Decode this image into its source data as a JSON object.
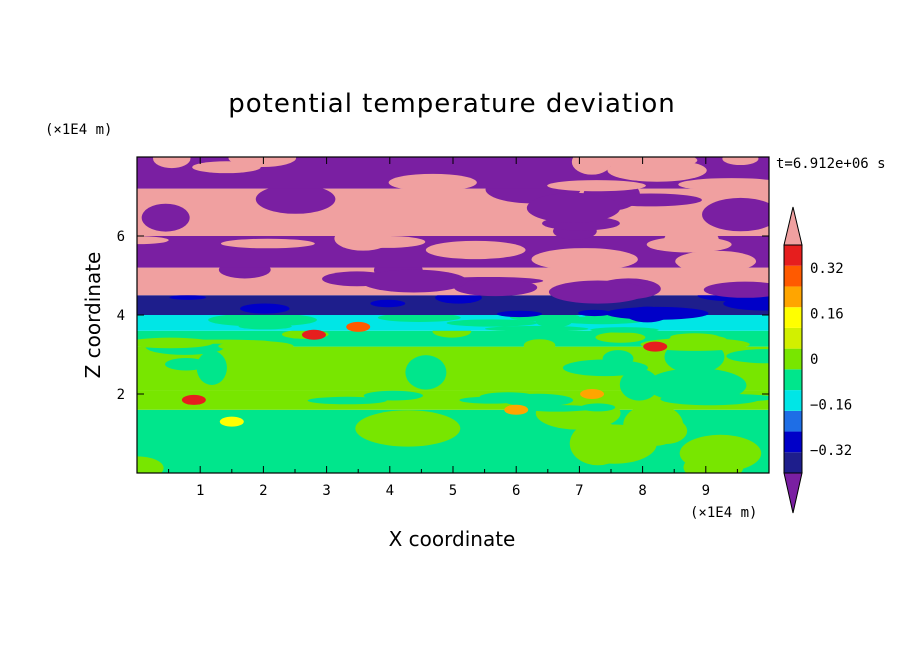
{
  "chart_data": {
    "type": "heatmap",
    "title": "potential temperature deviation",
    "xlabel": "X coordinate",
    "ylabel": "Z coordinate",
    "x_unit": "(×1E4 m)",
    "z_unit": "(×1E4 m)",
    "time_label": "t=6.912e+06 s",
    "xlim": [
      0,
      10
    ],
    "zlim": [
      0,
      8
    ],
    "x_ticks": [
      "1",
      "2",
      "3",
      "4",
      "5",
      "6",
      "7",
      "8",
      "9"
    ],
    "z_ticks": [
      "2",
      "4",
      "6"
    ],
    "colorbar": {
      "levels": [
        -0.48,
        -0.4,
        -0.32,
        -0.24,
        -0.16,
        -0.08,
        0,
        0.08,
        0.16,
        0.24,
        0.32,
        0.4,
        0.48
      ],
      "labels": [
        "-0.32",
        "-0.16",
        "0",
        "0.16",
        "0.32"
      ],
      "colors": [
        "#7a1fa2",
        "#1e1e8c",
        "#0000c8",
        "#1e6ee6",
        "#00e6e6",
        "#00e68c",
        "#78e600",
        "#d2f000",
        "#ffff00",
        "#ffa500",
        "#ff5a00",
        "#e61e1e",
        "#f0a0a0"
      ]
    },
    "bands": [
      {
        "z": [
          0.0,
          1.6
        ],
        "base": "#00e68c",
        "blobs": "#78e600"
      },
      {
        "z": [
          1.6,
          2.1
        ],
        "base": "#78e600",
        "blobs": "#00e68c"
      },
      {
        "z": [
          2.1,
          3.2
        ],
        "base": "#78e600",
        "blobs": "#00e68c"
      },
      {
        "z": [
          3.2,
          3.6
        ],
        "base": "#00e68c",
        "blobs": "#78e600"
      },
      {
        "z": [
          3.6,
          4.0
        ],
        "base": "#00e6e6",
        "blobs": "#00e68c"
      },
      {
        "z": [
          4.0,
          4.5
        ],
        "base": "#1e1e8c",
        "blobs": "#0000c8"
      },
      {
        "z": [
          4.5,
          5.2
        ],
        "base": "#f0a0a0",
        "blobs": "#7a1fa2"
      },
      {
        "z": [
          5.2,
          6.0
        ],
        "base": "#7a1fa2",
        "blobs": "#f0a0a0"
      },
      {
        "z": [
          6.0,
          7.2
        ],
        "base": "#f0a0a0",
        "blobs": "#7a1fa2"
      },
      {
        "z": [
          7.2,
          8.0
        ],
        "base": "#7a1fa2",
        "blobs": "#f0a0a0"
      }
    ],
    "warm_spots": [
      {
        "x": 0.9,
        "z": 1.85,
        "color": "#e61e1e"
      },
      {
        "x": 1.5,
        "z": 1.3,
        "color": "#ffff00"
      },
      {
        "x": 6.0,
        "z": 1.6,
        "color": "#ffa500"
      },
      {
        "x": 3.5,
        "z": 3.7,
        "color": "#ff5a00"
      },
      {
        "x": 7.2,
        "z": 2.0,
        "color": "#ffa500"
      },
      {
        "x": 2.8,
        "z": 3.5,
        "color": "#e61e1e"
      },
      {
        "x": 8.2,
        "z": 3.2,
        "color": "#e61e1e"
      }
    ]
  }
}
